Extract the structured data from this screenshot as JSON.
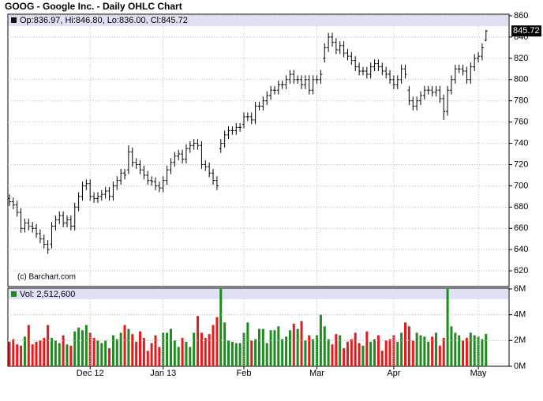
{
  "chart_data": [
    {
      "type": "ohlc",
      "title": "GOOG - Google Inc. - Daily OHLC Chart",
      "legend_text": "Op:836.97, Hi:846.80, Lo:836.00, Cl:845.72",
      "last_price_label": 845.72,
      "source": "(c) Barchart.com",
      "color": "#000000",
      "grid": true,
      "ylim": [
        605.2,
        861.5
      ],
      "yticks": [
        620,
        640,
        660,
        680,
        700,
        720,
        740,
        760,
        780,
        800,
        820,
        840,
        860
      ],
      "xlim": [
        -0.4,
        130
      ],
      "open": [
        688,
        685,
        682,
        675,
        660,
        665,
        662,
        660,
        655,
        650,
        645,
        645,
        662,
        668,
        672,
        665,
        668,
        662,
        680,
        690,
        700,
        702,
        690,
        688,
        690,
        692,
        695,
        690,
        700,
        705,
        712,
        715,
        732,
        722,
        720,
        715,
        710,
        705,
        704,
        700,
        698,
        705,
        715,
        722,
        728,
        730,
        725,
        735,
        738,
        740,
        738,
        720,
        718,
        712,
        705,
        735,
        740,
        748,
        752,
        752,
        755,
        758,
        765,
        765,
        762,
        775,
        775,
        780,
        785,
        790,
        790,
        795,
        795,
        800,
        805,
        800,
        800,
        795,
        800,
        790,
        800,
        800,
        820,
        830,
        840,
        835,
        828,
        832,
        825,
        822,
        818,
        812,
        808,
        808,
        805,
        812,
        815,
        812,
        808,
        805,
        800,
        795,
        800,
        810,
        790,
        780,
        775,
        780,
        785,
        790,
        790,
        788,
        790,
        782,
        770,
        790,
        800,
        810,
        810,
        808,
        800,
        812,
        820,
        822,
        836.97
      ],
      "high": [
        692,
        689,
        686,
        679,
        669,
        669,
        666,
        664,
        659,
        654,
        649,
        666,
        672,
        676,
        676,
        672,
        672,
        684,
        694,
        704,
        706,
        706,
        694,
        694,
        696,
        699,
        699,
        704,
        709,
        716,
        716,
        738,
        736,
        726,
        724,
        719,
        714,
        709,
        708,
        704,
        709,
        719,
        726,
        732,
        734,
        734,
        739,
        742,
        744,
        744,
        742,
        724,
        722,
        716,
        709,
        744,
        752,
        756,
        756,
        759,
        759,
        769,
        769,
        769,
        779,
        779,
        784,
        789,
        794,
        794,
        799,
        799,
        804,
        809,
        809,
        804,
        804,
        804,
        804,
        804,
        804,
        809,
        834,
        844,
        844,
        839,
        836,
        836,
        829,
        826,
        822,
        816,
        812,
        812,
        816,
        819,
        819,
        816,
        812,
        809,
        804,
        804,
        814,
        814,
        794,
        784,
        784,
        789,
        794,
        794,
        794,
        794,
        794,
        786,
        794,
        804,
        814,
        814,
        814,
        812,
        816,
        824,
        826,
        834,
        846.8
      ],
      "low": [
        681,
        678,
        671,
        656,
        656,
        658,
        656,
        651,
        646,
        641,
        636,
        641,
        658,
        664,
        661,
        661,
        658,
        658,
        676,
        686,
        696,
        686,
        684,
        684,
        686,
        688,
        686,
        686,
        696,
        701,
        706,
        711,
        718,
        716,
        711,
        706,
        701,
        700,
        696,
        694,
        694,
        701,
        711,
        718,
        724,
        721,
        721,
        731,
        734,
        734,
        716,
        714,
        708,
        701,
        696,
        731,
        736,
        744,
        748,
        748,
        751,
        754,
        761,
        758,
        758,
        771,
        771,
        776,
        781,
        786,
        786,
        791,
        791,
        796,
        796,
        796,
        791,
        791,
        786,
        786,
        796,
        796,
        816,
        826,
        831,
        824,
        824,
        821,
        818,
        814,
        808,
        804,
        804,
        801,
        801,
        808,
        808,
        804,
        801,
        796,
        791,
        791,
        796,
        801,
        776,
        771,
        771,
        776,
        781,
        786,
        784,
        784,
        778,
        762,
        766,
        786,
        796,
        806,
        804,
        796,
        796,
        808,
        816,
        818,
        836
      ],
      "close": [
        685,
        682,
        675,
        660,
        665,
        662,
        660,
        655,
        650,
        645,
        640,
        662,
        668,
        672,
        665,
        668,
        662,
        680,
        690,
        700,
        702,
        690,
        688,
        690,
        692,
        695,
        690,
        700,
        705,
        712,
        710,
        732,
        722,
        720,
        715,
        710,
        705,
        704,
        700,
        698,
        705,
        715,
        722,
        728,
        730,
        725,
        735,
        738,
        740,
        738,
        720,
        718,
        712,
        705,
        700,
        740,
        748,
        752,
        752,
        755,
        755,
        765,
        765,
        762,
        775,
        775,
        780,
        785,
        790,
        790,
        795,
        795,
        800,
        805,
        800,
        800,
        795,
        800,
        790,
        800,
        800,
        805,
        830,
        840,
        835,
        828,
        832,
        825,
        822,
        818,
        812,
        808,
        808,
        805,
        812,
        815,
        812,
        808,
        805,
        800,
        795,
        800,
        810,
        805,
        780,
        775,
        780,
        785,
        790,
        790,
        788,
        790,
        782,
        770,
        790,
        800,
        810,
        810,
        808,
        800,
        812,
        820,
        822,
        830,
        845.72
      ]
    },
    {
      "type": "bar",
      "legend_text": "Vol: 2,512,600",
      "up_color": "#1f8a1f",
      "down_color": "#e8191c",
      "grid": true,
      "ylim": [
        0,
        6
      ],
      "yticks": [
        {
          "value": 0,
          "label": "0M"
        },
        {
          "value": 2,
          "label": "2M"
        },
        {
          "value": 4,
          "label": "4M"
        },
        {
          "value": 6,
          "label": "6M"
        }
      ],
      "xlim": [
        -0.4,
        130
      ],
      "xticks": [
        {
          "value": 21,
          "label": "Dec 12"
        },
        {
          "value": 40,
          "label": "Jan 13"
        },
        {
          "value": 61,
          "label": "Feb"
        },
        {
          "value": 80,
          "label": "Mar"
        },
        {
          "value": 100,
          "label": "Apr"
        },
        {
          "value": 122,
          "label": "May"
        }
      ],
      "values": [
        1.9,
        2.1,
        1.7,
        1.6,
        2.3,
        3.2,
        1.7,
        1.9,
        2.0,
        2.2,
        3.2,
        2.2,
        2.0,
        1.8,
        2.4,
        1.7,
        1.6,
        2.7,
        3.0,
        2.8,
        3.2,
        2.6,
        2.2,
        2.0,
        1.8,
        2.0,
        1.4,
        2.4,
        2.1,
        2.6,
        3.2,
        2.9,
        2.5,
        1.9,
        2.7,
        2.2,
        1.2,
        1.8,
        2.4,
        1.5,
        2.6,
        2.6,
        2.9,
        2.0,
        1.5,
        2.2,
        1.9,
        1.5,
        2.6,
        3.9,
        2.6,
        2.2,
        2.5,
        3.2,
        3.8,
        6.0,
        3.4,
        2.0,
        1.9,
        1.8,
        1.8,
        2.6,
        3.4,
        2.0,
        2.1,
        2.9,
        2.9,
        1.8,
        2.8,
        2.8,
        3.1,
        2.1,
        2.3,
        2.8,
        3.3,
        2.9,
        3.5,
        2.0,
        2.4,
        2.1,
        2.4,
        4.0,
        3.1,
        2.1,
        1.7,
        2.5,
        2.4,
        1.4,
        1.9,
        2.1,
        2.6,
        1.8,
        1.6,
        2.7,
        1.9,
        2.1,
        2.4,
        1.2,
        2.0,
        2.1,
        2.4,
        1.9,
        2.6,
        3.4,
        3.1,
        2.0,
        2.6,
        2.4,
        2.3,
        1.9,
        2.3,
        2.6,
        1.6,
        2.2,
        6.4,
        3.1,
        2.6,
        2.4,
        2.0,
        2.2,
        2.6,
        2.4,
        2.3,
        2.1,
        2.5126
      ]
    }
  ]
}
